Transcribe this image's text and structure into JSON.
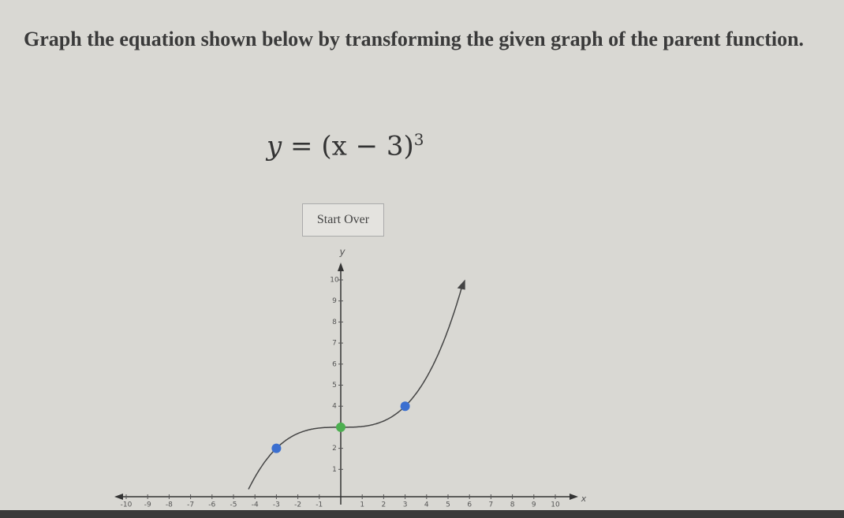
{
  "question": "Graph the equation shown below by transforming the given graph of the parent function.",
  "equation": {
    "lhs": "y",
    "equals": "=",
    "rhs": "(x − 3)",
    "exponent": "3"
  },
  "button": "Start Over",
  "graph": {
    "x_label": "x",
    "y_label": "y",
    "xticks": [
      -10,
      -9,
      -8,
      -7,
      -6,
      -5,
      -4,
      -3,
      -2,
      -1,
      1,
      2,
      3,
      4,
      5,
      6,
      7,
      8,
      9,
      10
    ],
    "yticks": [
      1,
      2,
      4,
      5,
      6,
      7,
      8,
      9,
      10
    ],
    "points": [
      {
        "x": -3,
        "y": 2,
        "color": "#3b6fd0"
      },
      {
        "x": 0,
        "y": 3,
        "color": "#4caf50"
      },
      {
        "x": 3,
        "y": 4,
        "color": "#3b6fd0"
      }
    ]
  }
}
